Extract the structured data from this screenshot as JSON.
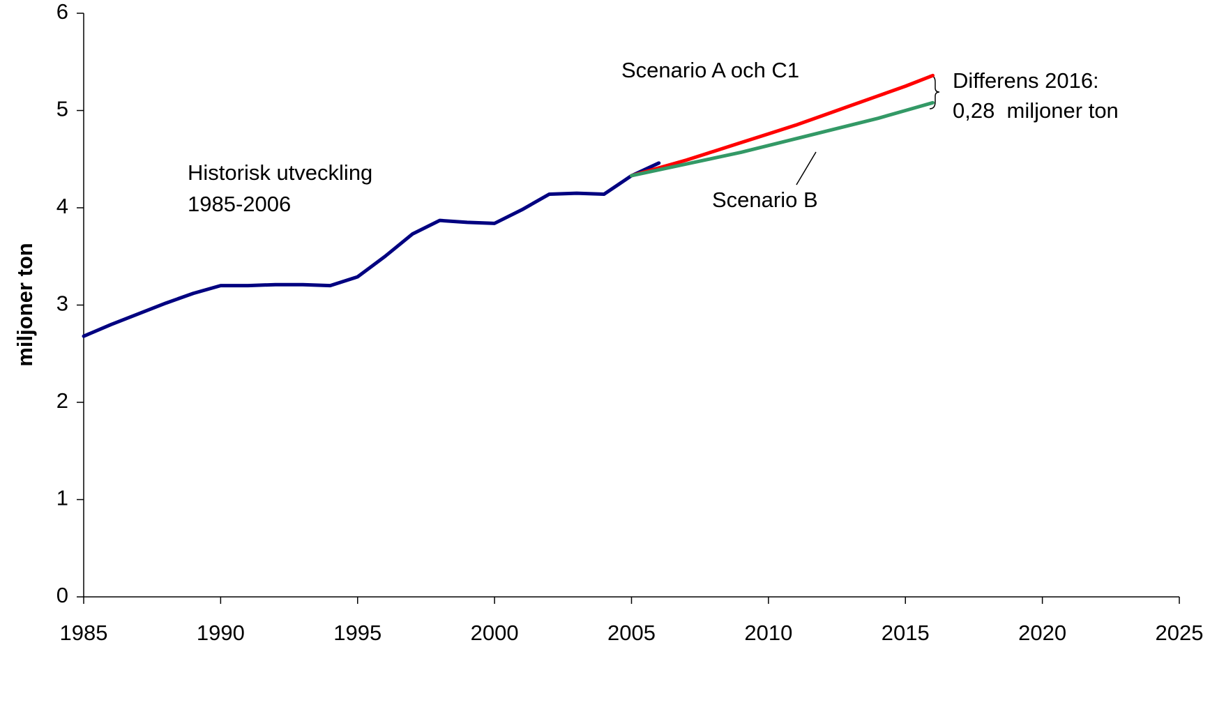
{
  "chart_data": {
    "type": "line",
    "ylabel": "miljoner ton",
    "xlim": [
      1985,
      2025
    ],
    "xticks": [
      1985,
      1990,
      1995,
      2000,
      2005,
      2010,
      2015,
      2020,
      2025
    ],
    "ylim": [
      0,
      6
    ],
    "yticks": [
      0,
      1,
      2,
      3,
      4,
      5,
      6
    ],
    "grid": false,
    "series": [
      {
        "color": "#000080",
        "x": [
          1985,
          1986,
          1987,
          1988,
          1989,
          1990,
          1991,
          1992,
          1993,
          1994,
          1995,
          1996,
          1997,
          1998,
          1999,
          2000,
          2001,
          2002,
          2003,
          2004,
          2005,
          2006
        ],
        "values": [
          2.68,
          2.8,
          2.91,
          3.02,
          3.12,
          3.2,
          3.2,
          3.21,
          3.21,
          3.2,
          3.29,
          3.5,
          3.73,
          3.87,
          3.85,
          3.84,
          3.98,
          4.14,
          4.15,
          4.14,
          4.33,
          4.46
        ]
      },
      {
        "color": "#ff0000",
        "x": [
          2005,
          2006,
          2007,
          2008,
          2009,
          2010,
          2011,
          2012,
          2013,
          2014,
          2015,
          2016
        ],
        "values": [
          4.33,
          4.41,
          4.49,
          4.58,
          4.67,
          4.76,
          4.85,
          4.95,
          5.05,
          5.15,
          5.25,
          5.36
        ]
      },
      {
        "color": "#339966",
        "x": [
          2005,
          2006,
          2007,
          2008,
          2009,
          2010,
          2011,
          2012,
          2013,
          2014,
          2015,
          2016
        ],
        "values": [
          4.33,
          4.39,
          4.45,
          4.51,
          4.57,
          4.64,
          4.71,
          4.78,
          4.85,
          4.92,
          5.0,
          5.08
        ]
      }
    ],
    "annotations": [
      "Historisk utveckling",
      "1985-2006",
      "Scenario A och C1",
      "Scenario B",
      "Differens 2016:",
      "0,28  miljoner ton"
    ]
  }
}
